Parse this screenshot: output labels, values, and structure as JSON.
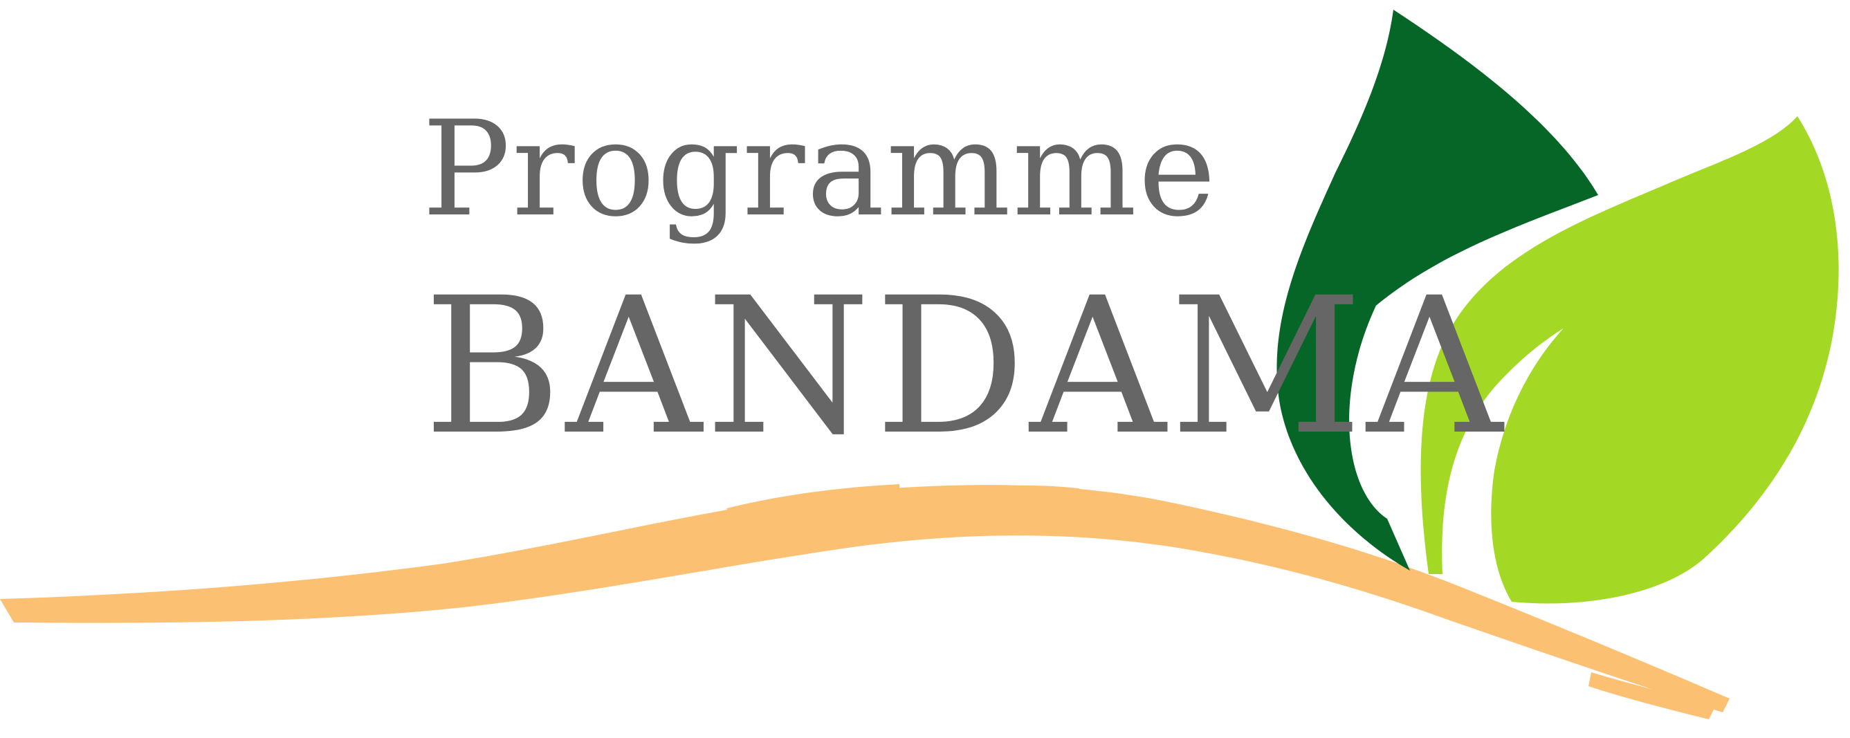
{
  "brand": {
    "line1": "Programme",
    "line2": "BANDAMA"
  },
  "colors": {
    "text": "#666666",
    "dark_leaf": "#066627",
    "light_leaf": "#a3d924",
    "swoosh": "#fcc073",
    "background": "#ffffff"
  },
  "icons": {
    "dark_leaf": "dark-green-leaf-icon",
    "light_leaf": "light-green-leaf-icon",
    "swoosh": "orange-brush-swoosh"
  }
}
